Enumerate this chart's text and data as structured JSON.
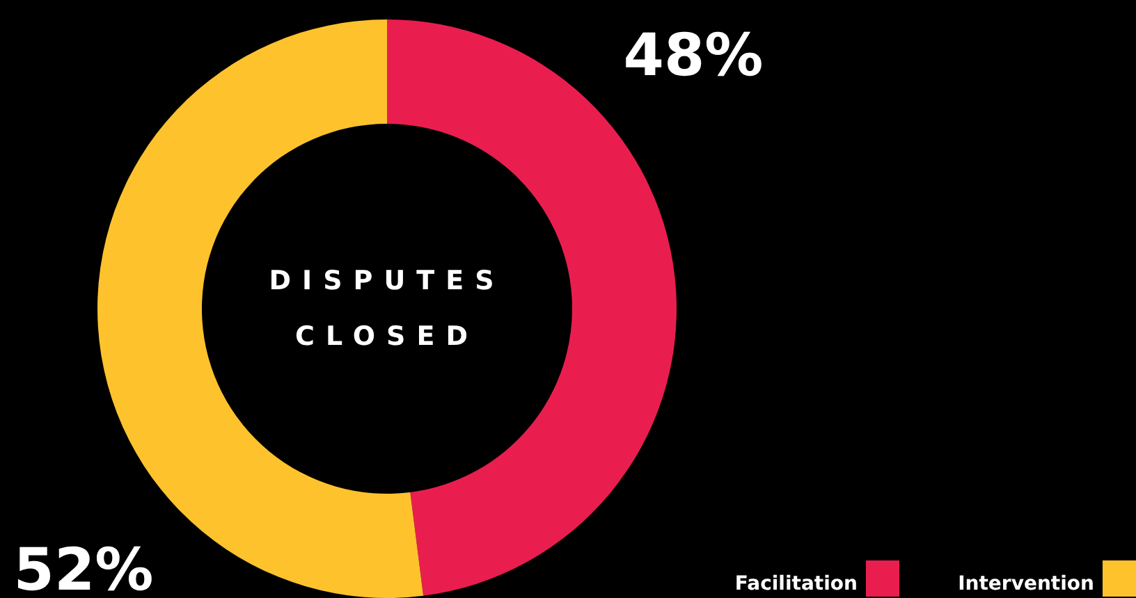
{
  "chart_data": {
    "type": "donut",
    "title": "DISPUTES CLOSED",
    "categories": [
      "Facilitation",
      "Intervention"
    ],
    "values": [
      48,
      52
    ],
    "colors": [
      "#e91e4f",
      "#fec22d"
    ],
    "value_labels": [
      "48%",
      "52%"
    ],
    "legend": "bottom right"
  }
}
